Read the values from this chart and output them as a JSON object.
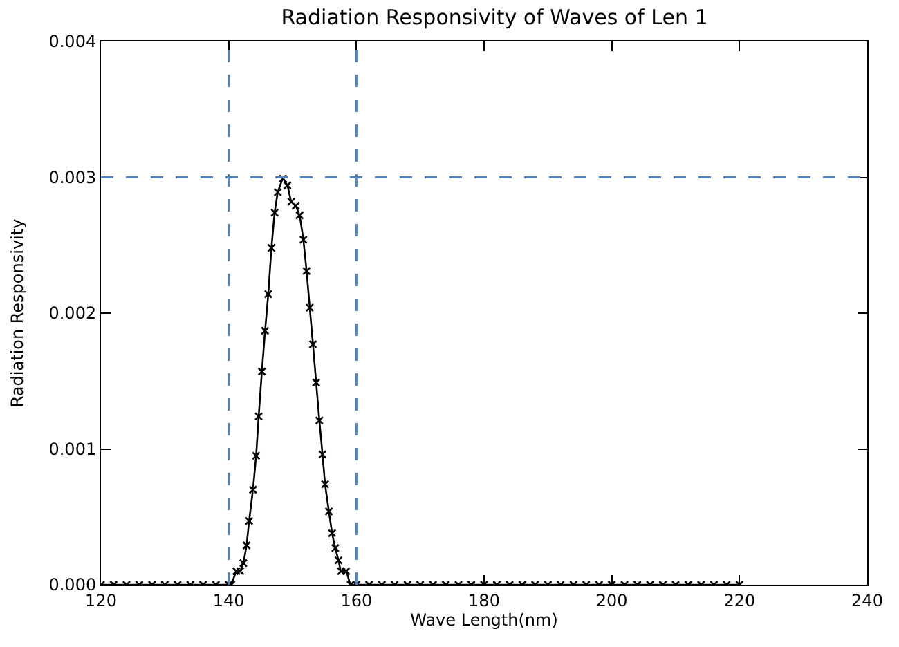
{
  "chart_data": {
    "type": "line",
    "title": "Radiation Responsivity of Waves of Len 1",
    "xlabel": "Wave Length(nm)",
    "ylabel": "Radiation Responsivity",
    "x": [
      120,
      122,
      124,
      126,
      128,
      130,
      132,
      134,
      136,
      138,
      140,
      140.4,
      141.2,
      141.8,
      142.3,
      142.8,
      143.2,
      143.8,
      144.3,
      144.7,
      145.2,
      145.7,
      146.2,
      146.7,
      147.2,
      147.7,
      148.5,
      149.2,
      149.8,
      150.5,
      151.1,
      151.7,
      152.2,
      152.7,
      153.2,
      153.7,
      154.2,
      154.7,
      155.1,
      155.7,
      156.2,
      156.7,
      157.2,
      157.6,
      158.4,
      159.1,
      160,
      162,
      164,
      166,
      168,
      170,
      172,
      174,
      176,
      178,
      180,
      182,
      184,
      186,
      188,
      190,
      192,
      194,
      196,
      198,
      200,
      202,
      204,
      206,
      208,
      210,
      212,
      214,
      216,
      218,
      220
    ],
    "series": [
      {
        "color": "#000000",
        "values": [
          0,
          0,
          0,
          0,
          0,
          0,
          0,
          0,
          0,
          0,
          0,
          0,
          0.0001,
          0.0001,
          0.00016,
          0.00029,
          0.00047,
          0.0007,
          0.00095,
          0.00124,
          0.00157,
          0.00187,
          0.00214,
          0.00248,
          0.00274,
          0.00289,
          0.00299,
          0.00294,
          0.00282,
          0.00279,
          0.00272,
          0.00254,
          0.00231,
          0.00204,
          0.00177,
          0.00149,
          0.00121,
          0.00096,
          0.00074,
          0.00054,
          0.00038,
          0.00027,
          0.00018,
          0.0001,
          0.0001,
          0,
          0,
          0,
          0,
          0,
          0,
          0,
          0,
          0,
          0,
          0,
          0,
          0,
          0,
          0,
          0,
          0,
          0,
          0,
          0,
          0,
          0,
          0,
          0,
          0,
          0,
          0,
          0,
          0,
          0,
          0,
          0
        ]
      }
    ],
    "xlim": [
      120,
      240
    ],
    "xticks": [
      120,
      140,
      160,
      180,
      200,
      220,
      240
    ],
    "ylim": [
      0,
      0.004
    ],
    "yticks": [
      {
        "value": 0,
        "label": "0.000"
      },
      {
        "value": 0.001,
        "label": "0.001"
      },
      {
        "value": 0.002,
        "label": "0.002"
      },
      {
        "value": 0.003,
        "label": "0.003"
      },
      {
        "value": 0.004,
        "label": "0.004"
      }
    ],
    "ref_lines": [
      {
        "axis": "x",
        "value": 140,
        "color": "#4f81bd",
        "line_style": "dashed"
      },
      {
        "axis": "x",
        "value": 160,
        "color": "#4f81bd",
        "line_style": "dashed"
      },
      {
        "axis": "y",
        "value": 0.003,
        "color": "#4f81bd",
        "line_style": "dashed"
      }
    ],
    "marker": "cross",
    "line_style": "solid"
  }
}
